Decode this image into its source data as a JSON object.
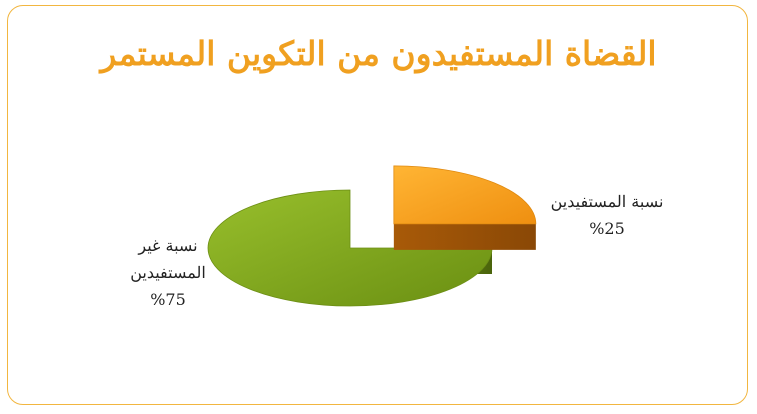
{
  "chart_data": {
    "type": "pie",
    "title": "القضاة المستفيدون من التكوين المستمر",
    "slices": [
      {
        "label_line1": "نسبة غير",
        "label_line2": "المستفيدين",
        "label": "نسبة غير المستفيدين",
        "value": 75,
        "value_text": "%75",
        "color": "#7ea019"
      },
      {
        "label_line1": "نسبة المستفيدين",
        "label": "نسبة المستفيدين",
        "value": 25,
        "value_text": "%25",
        "color": "#f5a01e"
      }
    ],
    "style": "3d-exploded",
    "legend": "none"
  }
}
